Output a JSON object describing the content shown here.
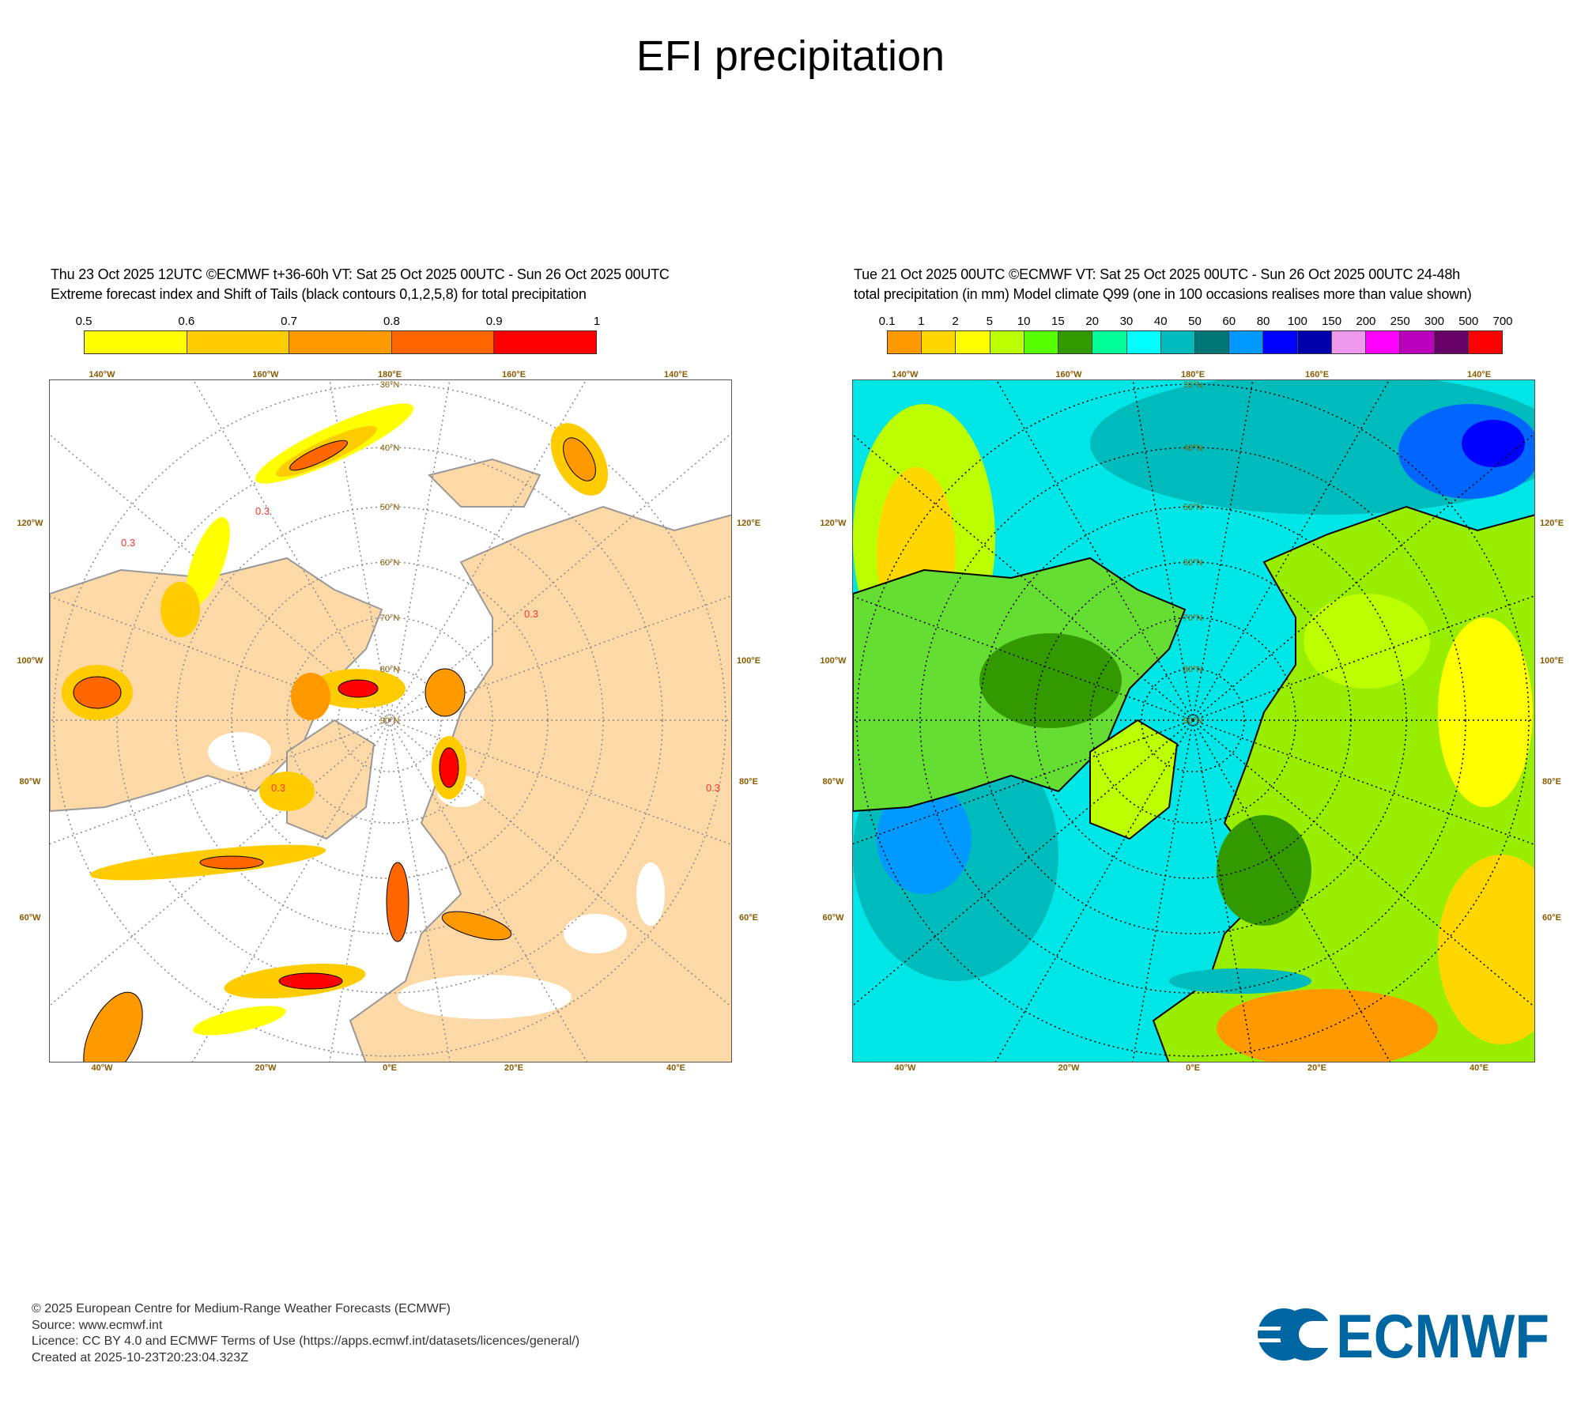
{
  "page_title": "EFI precipitation",
  "chart_data": [
    {
      "type": "heatmap",
      "panel": "left",
      "header_line1": "Thu 23 Oct 2025 12UTC ©ECMWF t+36-60h  VT: Sat 25 Oct 2025 00UTC - Sun 26 Oct 2025 00UTC",
      "header_line2": "Extreme forecast index and Shift of Tails (black contours 0,1,2,5,8) for total precipitation",
      "colorbar": {
        "labels": [
          "0.5",
          "0.6",
          "0.7",
          "0.8",
          "0.9",
          "1"
        ],
        "colors": [
          "#ffff00",
          "#ffcc00",
          "#ff9900",
          "#ff6600",
          "#ff0000"
        ]
      },
      "contour_label": "0.3",
      "projection": "north polar stereographic",
      "top_ticks": [
        "140°W",
        "160°W",
        "180°E",
        "160°E",
        "140°E"
      ],
      "bottom_ticks": [
        "40°W",
        "20°W",
        "0°E",
        "20°E",
        "40°E"
      ],
      "left_ticks": [
        "120°W",
        "100°W",
        "80°W",
        "60°W"
      ],
      "right_ticks": [
        "120°E",
        "100°E",
        "80°E",
        "60°E"
      ],
      "lat_labels": [
        "30°N",
        "40°N",
        "50°N",
        "60°N",
        "70°N",
        "80°N",
        "90°N"
      ]
    },
    {
      "type": "heatmap",
      "panel": "right",
      "header_line1": "Tue 21 Oct 2025 00UTC ©ECMWF VT: Sat 25 Oct 2025 00UTC - Sun 26 Oct 2025 00UTC   24-48h",
      "header_line2": "total precipitation (in mm)  Model climate Q99 (one in 100 occasions realises more than value shown)",
      "colorbar": {
        "labels": [
          "0.1",
          "1",
          "2",
          "5",
          "10",
          "15",
          "20",
          "30",
          "40",
          "50",
          "60",
          "80",
          "100",
          "150",
          "200",
          "250",
          "300",
          "500",
          "700"
        ],
        "colors": [
          "#ff9900",
          "#ffd700",
          "#ffff00",
          "#bbff00",
          "#55ff00",
          "#339900",
          "#00ff99",
          "#00ffff",
          "#00bbbb",
          "#007777",
          "#0099ff",
          "#0000ff",
          "#0000aa",
          "#ee99ee",
          "#ff00ff",
          "#bb00bb",
          "#660066",
          "#ff0000"
        ]
      },
      "top_ticks": [
        "140°W",
        "160°W",
        "180°E",
        "160°E",
        "140°E"
      ],
      "bottom_ticks": [
        "40°W",
        "20°W",
        "0°E",
        "20°E",
        "40°E"
      ],
      "left_ticks": [
        "120°W",
        "100°W",
        "80°W",
        "60°W"
      ],
      "right_ticks": [
        "120°E",
        "100°E",
        "80°E",
        "60°E"
      ],
      "lat_labels": [
        "30°N",
        "40°N",
        "50°N",
        "60°N",
        "70°N",
        "80°N",
        "90°N"
      ]
    }
  ],
  "footer": {
    "copyright": "© 2025 European Centre for Medium-Range Weather Forecasts (ECMWF)",
    "source": "Source: www.ecmwf.int",
    "licence": "Licence: CC BY 4.0 and ECMWF Terms of Use (https://apps.ecmwf.int/datasets/licences/general/)",
    "created": "Created at 2025-10-23T20:23:04.323Z"
  },
  "logo": {
    "text": "ECMWF",
    "color": "#0066a1"
  }
}
